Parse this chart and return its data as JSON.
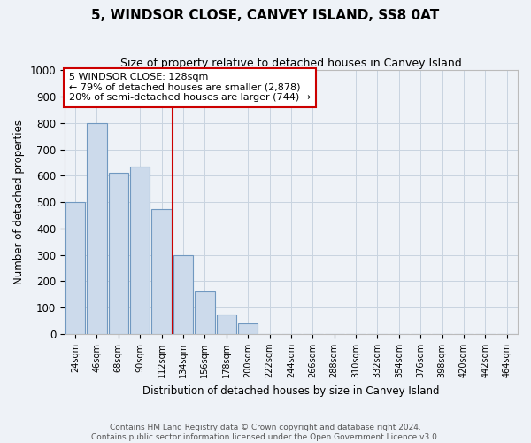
{
  "title": "5, WINDSOR CLOSE, CANVEY ISLAND, SS8 0AT",
  "subtitle": "Size of property relative to detached houses in Canvey Island",
  "xlabel": "Distribution of detached houses by size in Canvey Island",
  "ylabel": "Number of detached properties",
  "annotation_title": "5 WINDSOR CLOSE: 128sqm",
  "annotation_line1": "← 79% of detached houses are smaller (2,878)",
  "annotation_line2": "20% of semi-detached houses are larger (744) →",
  "bar_color": "#ccdaeb",
  "bar_edge_color": "#7098c0",
  "vline_color": "#cc0000",
  "annotation_box_color": "white",
  "annotation_box_edge": "#cc0000",
  "grid_color": "#c8d4e0",
  "background_color": "#eef2f7",
  "footer_line1": "Contains HM Land Registry data © Crown copyright and database right 2024.",
  "footer_line2": "Contains public sector information licensed under the Open Government Licence v3.0.",
  "bin_labels": [
    "24sqm",
    "46sqm",
    "68sqm",
    "90sqm",
    "112sqm",
    "134sqm",
    "156sqm",
    "178sqm",
    "200sqm",
    "222sqm",
    "244sqm",
    "266sqm",
    "288sqm",
    "310sqm",
    "332sqm",
    "354sqm",
    "376sqm",
    "398sqm",
    "420sqm",
    "442sqm",
    "464sqm"
  ],
  "bin_values": [
    500,
    800,
    610,
    635,
    475,
    300,
    160,
    75,
    40,
    0,
    0,
    0,
    0,
    0,
    0,
    0,
    0,
    0,
    0,
    0,
    0
  ],
  "vline_x": 4.5,
  "ylim": [
    0,
    1000
  ],
  "yticks": [
    0,
    100,
    200,
    300,
    400,
    500,
    600,
    700,
    800,
    900,
    1000
  ]
}
